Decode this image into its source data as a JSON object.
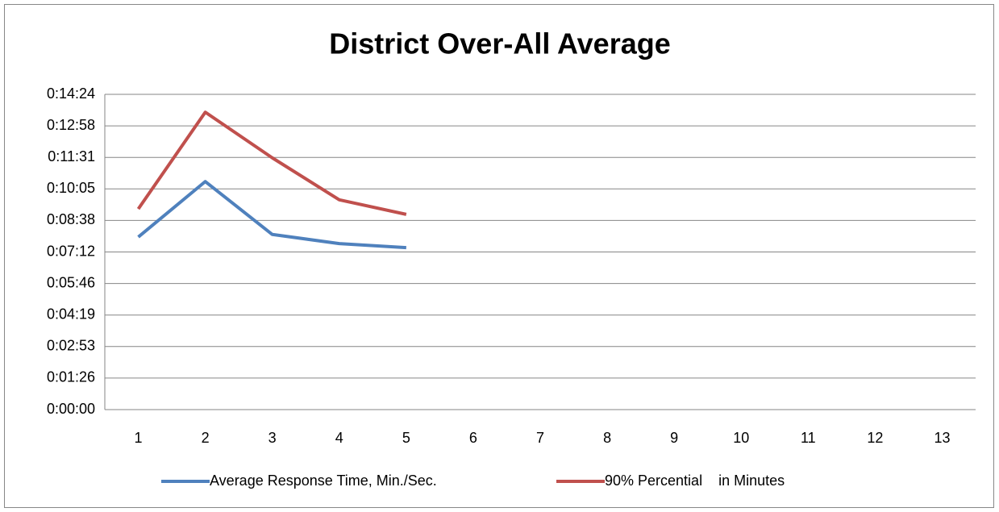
{
  "chart_data": {
    "type": "line",
    "title": "District Over-All Average",
    "categories": [
      "1",
      "2",
      "3",
      "4",
      "5",
      "6",
      "7",
      "8",
      "9",
      "10",
      "11",
      "12",
      "13"
    ],
    "series": [
      {
        "name": "Average Response Time, Min./Sec.",
        "color": "#4f81bd",
        "values": [
          473,
          625,
          480,
          455,
          444,
          null,
          null,
          null,
          null,
          null,
          null,
          null,
          null
        ]
      },
      {
        "name": "90% Percential    in Minutes",
        "color": "#c0504d",
        "values": [
          550,
          815,
          690,
          575,
          535,
          null,
          null,
          null,
          null,
          null,
          null,
          null,
          null
        ]
      }
    ],
    "ylim": [
      0,
      864
    ],
    "yticks": [
      {
        "value": 0,
        "label": "0:00:00"
      },
      {
        "value": 86.4,
        "label": "0:01:26"
      },
      {
        "value": 172.8,
        "label": "0:02:53"
      },
      {
        "value": 259.2,
        "label": "0:04:19"
      },
      {
        "value": 345.6,
        "label": "0:05:46"
      },
      {
        "value": 432,
        "label": "0:07:12"
      },
      {
        "value": 518.4,
        "label": "0:08:38"
      },
      {
        "value": 604.8,
        "label": "0:10:05"
      },
      {
        "value": 691.2,
        "label": "0:11:31"
      },
      {
        "value": 777.6,
        "label": "0:12:58"
      },
      {
        "value": 864,
        "label": "0:14:24"
      }
    ],
    "grid": true,
    "legend": "bottom"
  }
}
